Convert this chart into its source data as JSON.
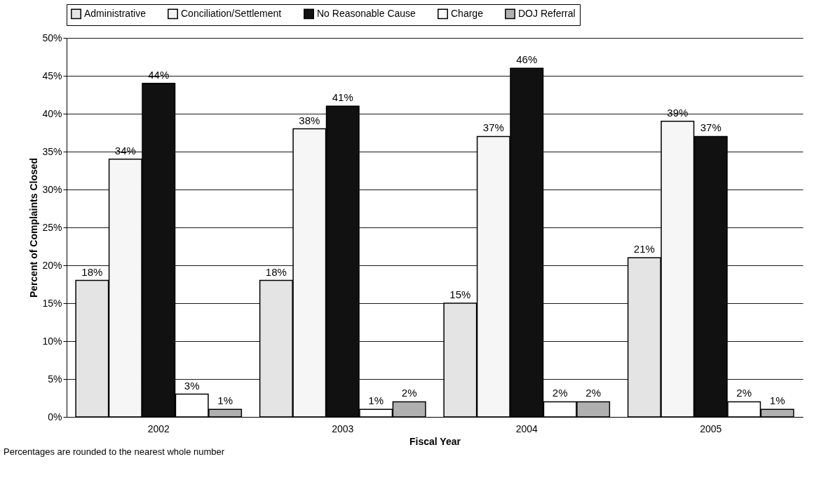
{
  "chart_data": {
    "type": "bar",
    "xlabel": "Fiscal Year",
    "ylabel": "Percent of Complaints Closed",
    "categories": [
      "2002",
      "2003",
      "2004",
      "2005"
    ],
    "series": [
      {
        "name": "Administrative",
        "color": "#e4e4e4",
        "values": [
          18,
          18,
          15,
          21
        ],
        "value_labels": [
          "18%",
          "18%",
          "15%",
          "21%"
        ]
      },
      {
        "name": "Conciliation/Settlement",
        "color": "#f6f6f6",
        "values": [
          34,
          38,
          37,
          39
        ],
        "value_labels": [
          "34%",
          "38%",
          "37%",
          "39%"
        ]
      },
      {
        "name": "No Reasonable Cause",
        "color": "#111111",
        "values": [
          44,
          41,
          46,
          37
        ],
        "value_labels": [
          "44%",
          "41%",
          "46%",
          "37%"
        ]
      },
      {
        "name": "Charge",
        "color": "#ffffff",
        "values": [
          3,
          1,
          2,
          2
        ],
        "value_labels": [
          "3%",
          "1%",
          "2%",
          "2%"
        ]
      },
      {
        "name": "DOJ Referral",
        "color": "#b0b0b0",
        "values": [
          1,
          2,
          2,
          1
        ],
        "value_labels": [
          "1%",
          "2%",
          "2%",
          "1%"
        ]
      }
    ],
    "ylim": [
      0,
      50
    ],
    "yticks": [
      {
        "value": 0,
        "label": "0%"
      },
      {
        "value": 5,
        "label": "5%"
      },
      {
        "value": 10,
        "label": "10%"
      },
      {
        "value": 15,
        "label": "15%"
      },
      {
        "value": 20,
        "label": "20%"
      },
      {
        "value": 25,
        "label": "25%"
      },
      {
        "value": 30,
        "label": "30%"
      },
      {
        "value": 35,
        "label": "35%"
      },
      {
        "value": 40,
        "label": "40%"
      },
      {
        "value": 45,
        "label": "45%"
      },
      {
        "value": 50,
        "label": "50%"
      }
    ],
    "grid": "y",
    "legend": "top",
    "annotations": [
      "Percentages are rounded to the nearest whole number"
    ]
  }
}
